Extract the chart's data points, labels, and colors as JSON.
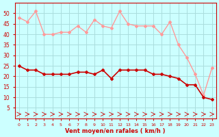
{
  "x": [
    0,
    1,
    2,
    3,
    4,
    5,
    6,
    7,
    8,
    9,
    10,
    11,
    12,
    13,
    14,
    15,
    16,
    17,
    18,
    19,
    20,
    21,
    22,
    23
  ],
  "wind_avg": [
    25,
    23,
    23,
    21,
    21,
    21,
    21,
    22,
    22,
    21,
    23,
    19,
    23,
    23,
    23,
    23,
    21,
    21,
    20,
    19,
    16,
    16,
    10,
    9
  ],
  "wind_gust": [
    48,
    46,
    51,
    40,
    40,
    41,
    41,
    44,
    41,
    47,
    44,
    43,
    51,
    45,
    44,
    44,
    44,
    40,
    46,
    35,
    29,
    21,
    11,
    24
  ],
  "avg_color": "#cc0000",
  "gust_color": "#ff9999",
  "dir_color": "#cc0000",
  "bg_color": "#ccffff",
  "grid_color": "#aadddd",
  "axis_color": "#cc0000",
  "xlabel": "Vent moyen/en rafales ( km/h )",
  "ylim": [
    0,
    55
  ],
  "yticks": [
    5,
    10,
    15,
    20,
    25,
    30,
    35,
    40,
    45,
    50
  ],
  "xlim": [
    -0.5,
    23.5
  ]
}
